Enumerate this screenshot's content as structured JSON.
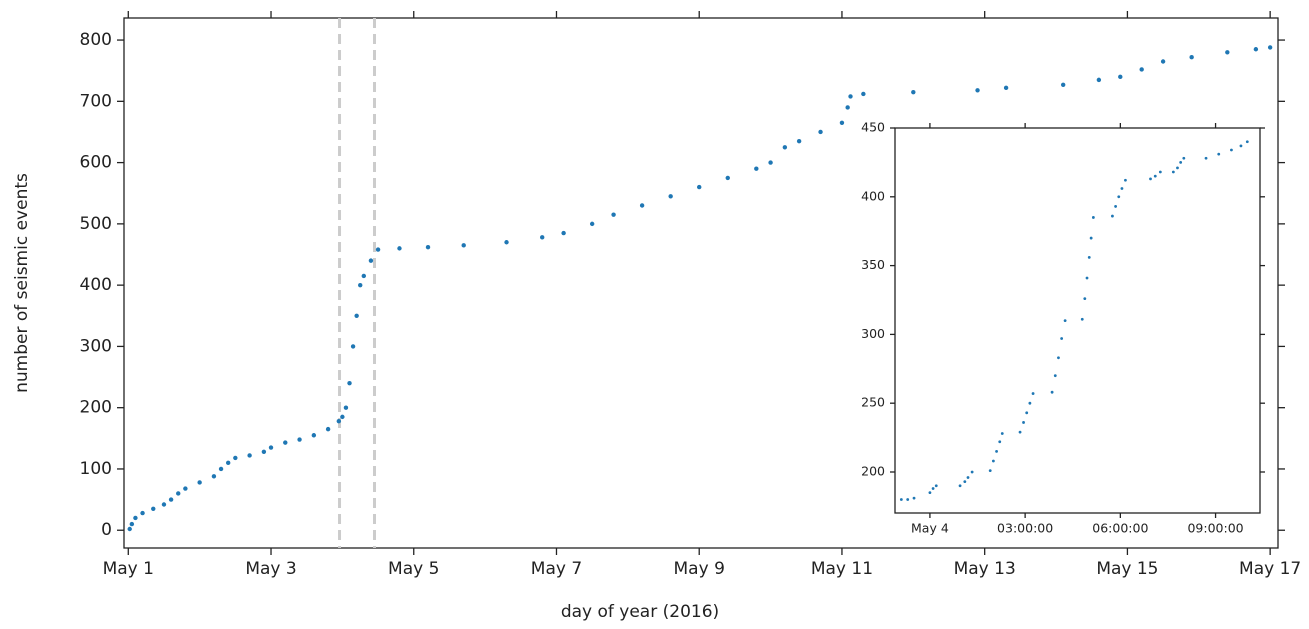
{
  "chart_data": [
    {
      "type": "scatter",
      "x_label": "day of year (2016)",
      "y_label": "number of seismic events",
      "xlim": [
        0.94,
        17.11
      ],
      "ylim": [
        -29,
        836
      ],
      "xticks": [
        {
          "value": 1,
          "label": "May 1"
        },
        {
          "value": 3,
          "label": "May 3"
        },
        {
          "value": 5,
          "label": "May 5"
        },
        {
          "value": 7,
          "label": "May 7"
        },
        {
          "value": 9,
          "label": "May 9"
        },
        {
          "value": 11,
          "label": "May 11"
        },
        {
          "value": 13,
          "label": "May 13"
        },
        {
          "value": 15,
          "label": "May 15"
        },
        {
          "value": 17,
          "label": "May 17"
        }
      ],
      "yticks": [
        0,
        100,
        200,
        300,
        400,
        500,
        600,
        700,
        800
      ],
      "vlines": [
        3.96,
        4.45
      ],
      "vline_color": "#cccccc",
      "series": [
        {
          "color": "#1f77b4",
          "x": [
            1.02,
            1.05,
            1.1,
            1.2,
            1.35,
            1.5,
            1.6,
            1.7,
            1.8,
            2.0,
            2.2,
            2.3,
            2.4,
            2.5,
            2.7,
            2.9,
            3.0,
            3.2,
            3.4,
            3.6,
            3.8,
            3.95,
            4.0,
            4.05,
            4.1,
            4.15,
            4.2,
            4.25,
            4.3,
            4.4,
            4.5,
            4.8,
            5.2,
            5.7,
            6.3,
            6.8,
            7.1,
            7.5,
            7.8,
            8.2,
            8.6,
            9.0,
            9.4,
            9.8,
            10.0,
            10.2,
            10.4,
            10.7,
            11.0,
            11.08,
            11.12,
            11.3,
            12.0,
            12.9,
            13.3,
            14.1,
            14.6,
            14.9,
            15.2,
            15.5,
            15.9,
            16.4,
            16.8,
            17.0
          ],
          "values": [
            2,
            10,
            20,
            28,
            35,
            42,
            50,
            60,
            68,
            78,
            88,
            100,
            110,
            118,
            122,
            128,
            135,
            143,
            148,
            155,
            165,
            178,
            185,
            200,
            240,
            300,
            350,
            400,
            415,
            440,
            458,
            460,
            462,
            465,
            470,
            478,
            485,
            500,
            515,
            530,
            545,
            560,
            575,
            590,
            600,
            625,
            635,
            650,
            665,
            690,
            708,
            712,
            715,
            718,
            722,
            727,
            735,
            740,
            752,
            765,
            772,
            780,
            785,
            788
          ]
        }
      ]
    },
    {
      "type": "scatter",
      "xlim": [
        -1.1,
        10.4
      ],
      "ylim": [
        170.2,
        450
      ],
      "xticks": [
        {
          "value": 0,
          "label": "May 4"
        },
        {
          "value": 3,
          "label": "03:00:00"
        },
        {
          "value": 6,
          "label": "06:00:00"
        },
        {
          "value": 9,
          "label": "09:00:00"
        }
      ],
      "yticks": [
        200,
        250,
        300,
        350,
        400,
        450
      ],
      "series": [
        {
          "color": "#1f77b4",
          "x": [
            -0.9,
            -0.7,
            -0.5,
            0.0,
            0.1,
            0.2,
            0.95,
            1.1,
            1.2,
            1.33,
            1.9,
            2.0,
            2.1,
            2.2,
            2.28,
            2.84,
            2.95,
            3.05,
            3.15,
            3.25,
            3.85,
            3.95,
            4.05,
            4.15,
            4.26,
            4.8,
            4.88,
            4.95,
            5.02,
            5.08,
            5.15,
            5.75,
            5.85,
            5.95,
            6.05,
            6.16,
            6.95,
            7.1,
            7.26,
            7.67,
            7.8,
            7.9,
            8.0,
            8.7,
            9.1,
            9.5,
            9.8,
            10.0
          ],
          "values": [
            180,
            180,
            181,
            185,
            188,
            190,
            190,
            193,
            196,
            200,
            201,
            208,
            215,
            222,
            228,
            229,
            236,
            243,
            250,
            257,
            258,
            270,
            283,
            297,
            310,
            311,
            326,
            341,
            356,
            370,
            385,
            386,
            393,
            400,
            406,
            412,
            413,
            415,
            418,
            418,
            421,
            425,
            428,
            428,
            431,
            434,
            437,
            440
          ]
        }
      ]
    }
  ]
}
